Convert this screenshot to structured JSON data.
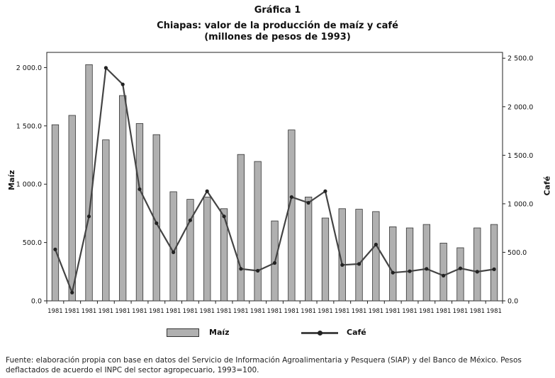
{
  "figure": {
    "label": "Gráfica 1",
    "title": "Chiapas: valor de la producción de maíz y café",
    "subtitle": "(millones de pesos de 1993)",
    "source": "Fuente: elaboración propia con base en datos del Servicio de Información Agroalimentaria y Pesquera (SIAP) y del Banco de México. Pesos deflactados de acuerdo el INPC del sector agropecuario, 1993=100."
  },
  "chart_data": {
    "type": "bar",
    "title": "Chiapas: valor de la producción de maíz y café",
    "subtitle": "(millones de pesos de 1993)",
    "categories": [
      "1981",
      "1981",
      "1981",
      "1981",
      "1981",
      "1981",
      "1981",
      "1981",
      "1981",
      "1981",
      "1981",
      "1981",
      "1981",
      "1981",
      "1981",
      "1981",
      "1981",
      "1981",
      "1981",
      "1981",
      "1981",
      "1981",
      "1981",
      "1981",
      "1981",
      "1981",
      "1981"
    ],
    "series": [
      {
        "name": "Maíz",
        "type": "bar",
        "axis": "left",
        "color": "#b0b0b0",
        "values": [
          1510,
          1590,
          2025,
          1380,
          1760,
          1520,
          1425,
          935,
          870,
          890,
          790,
          1255,
          1195,
          685,
          1465,
          890,
          710,
          790,
          785,
          765,
          635,
          625,
          655,
          495,
          455,
          625,
          655
        ]
      },
      {
        "name": "Café",
        "type": "line",
        "axis": "right",
        "color": "#444444",
        "values": [
          530,
          85,
          870,
          2400,
          2230,
          1150,
          800,
          500,
          830,
          1130,
          870,
          330,
          310,
          390,
          1070,
          1010,
          1130,
          370,
          380,
          580,
          290,
          305,
          330,
          260,
          335,
          300,
          325
        ]
      }
    ],
    "xlabel": "",
    "ylabel_left": "Maíz",
    "ylabel_right": "Café",
    "ylim_left": [
      0,
      2130
    ],
    "yticks_left": [
      0,
      500,
      1000,
      1500,
      2000
    ],
    "ytick_labels_left": [
      "0.0",
      "500.0",
      "1 000.0",
      "1 500.0",
      "2 000.0"
    ],
    "ylim_right": [
      0,
      2560
    ],
    "yticks_right": [
      0,
      500,
      1000,
      1500,
      2000,
      2500
    ],
    "ytick_labels_right": [
      "0.0",
      "500.0",
      "1 000.0",
      "1 500.0",
      "2 000.0",
      "2 500.0"
    ],
    "grid": false,
    "legend": "bottom",
    "legend_entries": [
      "Maíz",
      "Café"
    ]
  }
}
